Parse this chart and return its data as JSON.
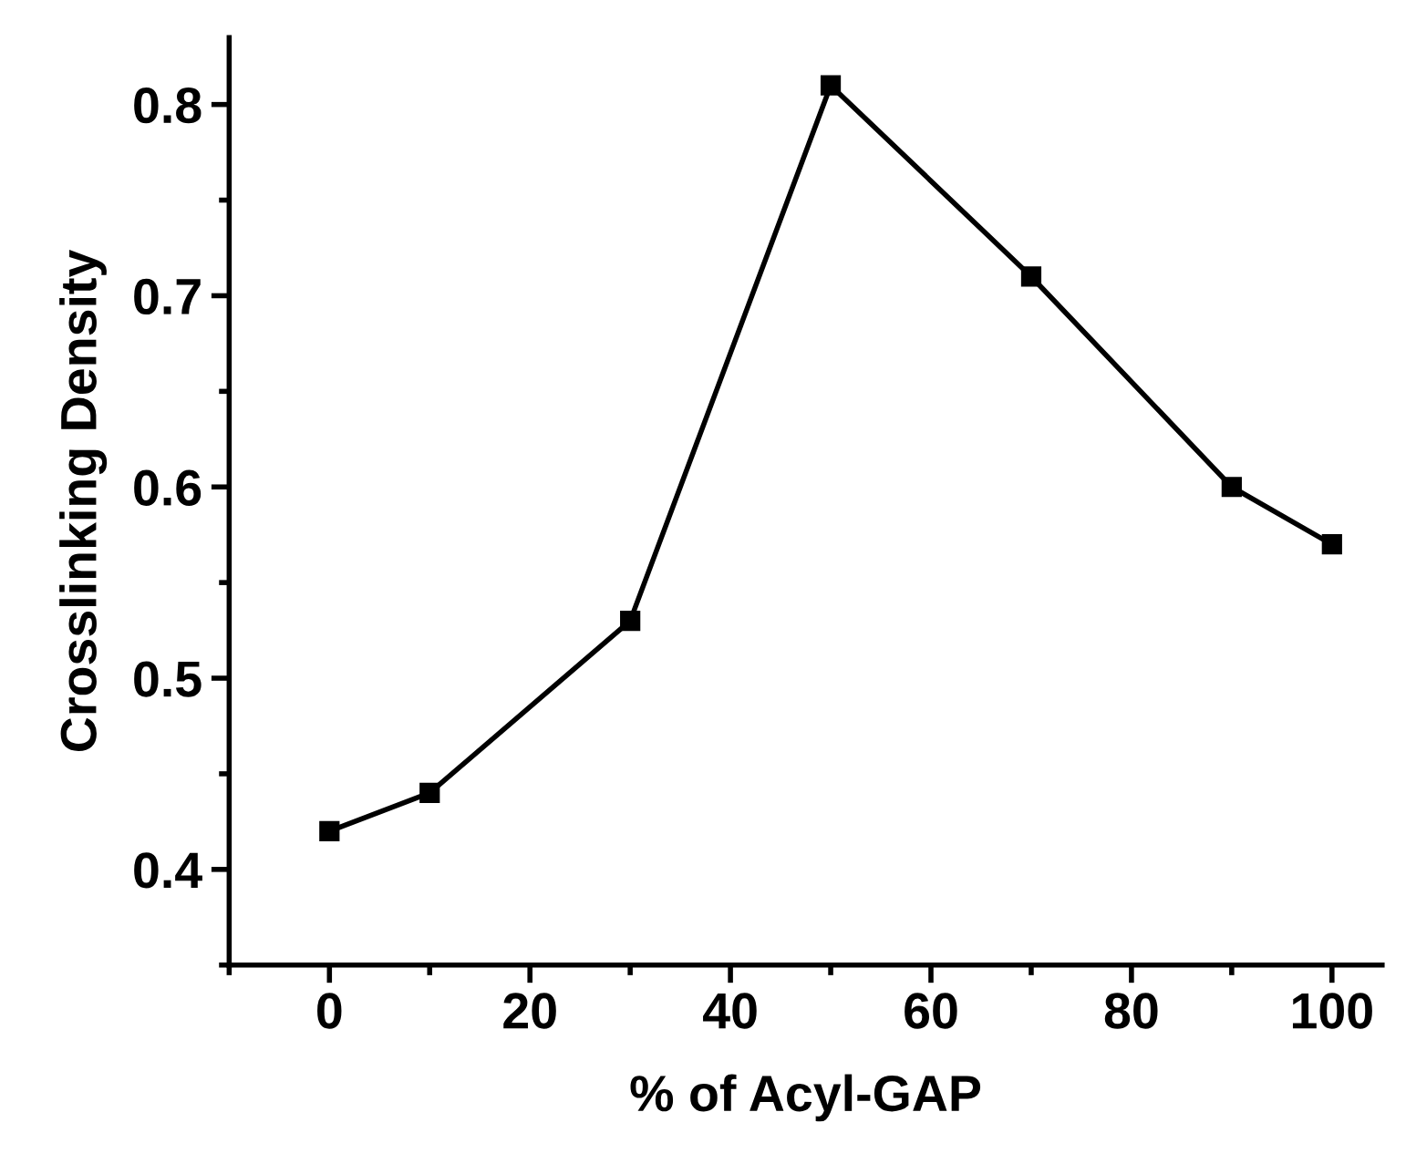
{
  "chart_data": {
    "type": "line",
    "xlabel": "% of Acyl-GAP",
    "ylabel": "Crosslinking Density",
    "x": [
      0,
      10,
      30,
      50,
      70,
      90,
      100
    ],
    "series": [
      {
        "color": "#000000",
        "values": [
          0.42,
          0.44,
          0.53,
          0.81,
          0.71,
          0.6,
          0.57
        ]
      }
    ],
    "xlim": [
      -10,
      105
    ],
    "ylim": [
      0.35,
      0.835
    ],
    "xticks": [
      0,
      20,
      40,
      60,
      80,
      100
    ],
    "yticks": [
      0.4,
      0.5,
      0.6,
      0.7,
      0.8
    ],
    "marker": "square",
    "line_style": "solid",
    "grid": false,
    "legend": false
  }
}
